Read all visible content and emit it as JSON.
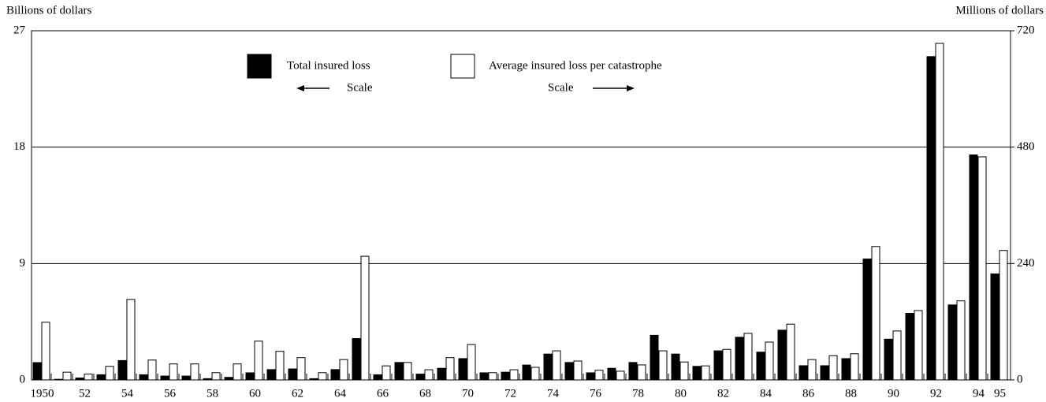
{
  "chart_data": {
    "type": "bar",
    "ylabel": "Billions of dollars",
    "y2label": "Millions of dollars",
    "categories": [
      "1950",
      null,
      "52",
      null,
      "54",
      null,
      "56",
      null,
      "58",
      null,
      "60",
      null,
      "62",
      null,
      "64",
      null,
      "66",
      null,
      "68",
      null,
      "70",
      null,
      "72",
      null,
      "74",
      null,
      "76",
      null,
      "78",
      null,
      "80",
      null,
      "82",
      null,
      "84",
      null,
      "86",
      null,
      "88",
      null,
      "90",
      null,
      "92",
      null,
      "94",
      "95"
    ],
    "series": [
      {
        "name": "Total insured loss",
        "legend_note": "Scale",
        "color": "#000000",
        "axis": "y",
        "values": [
          1.34,
          0.05,
          0.15,
          0.4,
          1.5,
          0.4,
          0.3,
          0.3,
          0.1,
          0.2,
          0.55,
          0.8,
          0.85,
          0.1,
          0.8,
          3.2,
          0.4,
          1.35,
          0.45,
          0.9,
          1.65,
          0.55,
          0.6,
          1.15,
          2.0,
          1.35,
          0.55,
          0.9,
          1.35,
          3.45,
          2.0,
          1.05,
          2.25,
          3.3,
          2.15,
          3.85,
          1.1,
          1.1,
          1.65,
          9.35,
          3.15,
          5.15,
          25.0,
          5.8,
          17.4,
          8.2
        ]
      },
      {
        "name": "Average insured loss per catastrophe",
        "legend_note": "Scale",
        "color": "#ffffff",
        "axis": "y2",
        "values": [
          119,
          16,
          12,
          28,
          166,
          41,
          33,
          33,
          15,
          33,
          80,
          59,
          46,
          15,
          42,
          255,
          29,
          36,
          21,
          46,
          73,
          15,
          21,
          26,
          60,
          39,
          20,
          18,
          31,
          60,
          37,
          29,
          63,
          96,
          78,
          115,
          42,
          50,
          54,
          275,
          101,
          143,
          694,
          163,
          460,
          267
        ]
      }
    ],
    "ylim": [
      0,
      27
    ],
    "yticks": [
      0,
      9,
      18,
      27
    ],
    "y2lim": [
      0,
      720
    ],
    "y2ticks": [
      0,
      240,
      480,
      720
    ],
    "grid": true
  }
}
